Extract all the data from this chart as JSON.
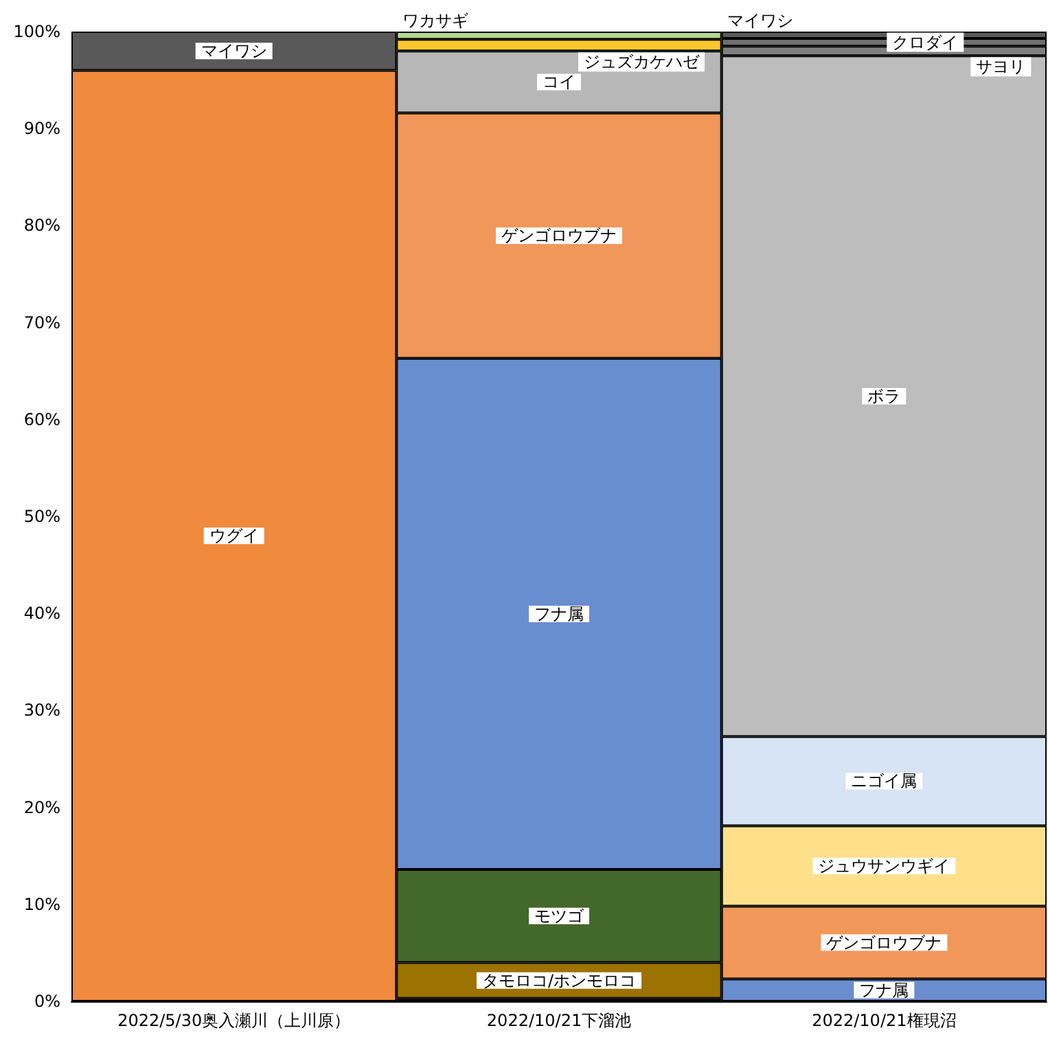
{
  "chart_data": {
    "type": "bar",
    "stacked": true,
    "categories": [
      "2022/5/30奥入瀬川（上川原）",
      "2022/10/21下溜池",
      "2022/10/21権現沼"
    ],
    "ylim": [
      0,
      100
    ],
    "yticks": [
      {
        "value": 0,
        "label": "0%"
      },
      {
        "value": 10,
        "label": "10%"
      },
      {
        "value": 20,
        "label": "20%"
      },
      {
        "value": 30,
        "label": "30%"
      },
      {
        "value": 40,
        "label": "40%"
      },
      {
        "value": 50,
        "label": "50%"
      },
      {
        "value": 60,
        "label": "60%"
      },
      {
        "value": 70,
        "label": "70%"
      },
      {
        "value": 80,
        "label": "80%"
      },
      {
        "value": 90,
        "label": "90%"
      },
      {
        "value": 100,
        "label": "100%"
      }
    ],
    "grid": false,
    "legend": false,
    "series": [
      {
        "name": "ウグイ",
        "color": "#f08a3c",
        "values": [
          96.0,
          null,
          null
        ]
      },
      {
        "name": "マイワシ",
        "color": "#595959",
        "values": [
          4.0,
          null,
          null
        ]
      },
      {
        "color": "#43682b",
        "values": [
          null,
          0.3,
          null
        ]
      },
      {
        "name": "タモロコ/ホンモロコ",
        "color": "#9c7200",
        "values": [
          null,
          3.7,
          null
        ]
      },
      {
        "name": "モツゴ",
        "color": "#43682b",
        "values": [
          null,
          9.6,
          null
        ]
      },
      {
        "name": "フナ属",
        "color": "#698ed0",
        "values": [
          null,
          52.7,
          null
        ]
      },
      {
        "name": "ゲンゴロウブナ",
        "color": "#f1975a",
        "values": [
          null,
          25.3,
          null
        ]
      },
      {
        "name": "コイ",
        "color": "#b7b7b7",
        "values": [
          null,
          6.4,
          null
        ]
      },
      {
        "name": "ジュズカケハゼ",
        "color": "#ffc82e",
        "values": [
          null,
          1.2,
          null
        ]
      },
      {
        "name": "ワカサギ",
        "color": "#b4d88f",
        "values": [
          null,
          0.8,
          null
        ]
      },
      {
        "name": "フナ属",
        "color": "#698ed0",
        "values": [
          null,
          null,
          2.3
        ]
      },
      {
        "name": "ゲンゴロウブナ",
        "color": "#f1975a",
        "values": [
          null,
          null,
          7.5
        ]
      },
      {
        "name": "ジュウサンウギイ",
        "color": "#ffe08a",
        "values": [
          null,
          null,
          8.3
        ]
      },
      {
        "name": "ニゴイ属",
        "color": "#d6e4f5",
        "values": [
          null,
          null,
          9.2
        ]
      },
      {
        "name": "ボラ",
        "color": "#bdbdbd",
        "values": [
          null,
          null,
          70.2
        ]
      },
      {
        "name": "サヨリ",
        "color": "#7f7f7f",
        "values": [
          null,
          null,
          1.0
        ]
      },
      {
        "name": "クロダイ",
        "color": "#6e6e6e",
        "values": [
          null,
          null,
          0.8
        ]
      },
      {
        "name": "マイワシ",
        "color": "#595959",
        "values": [
          null,
          null,
          0.7
        ]
      }
    ]
  }
}
